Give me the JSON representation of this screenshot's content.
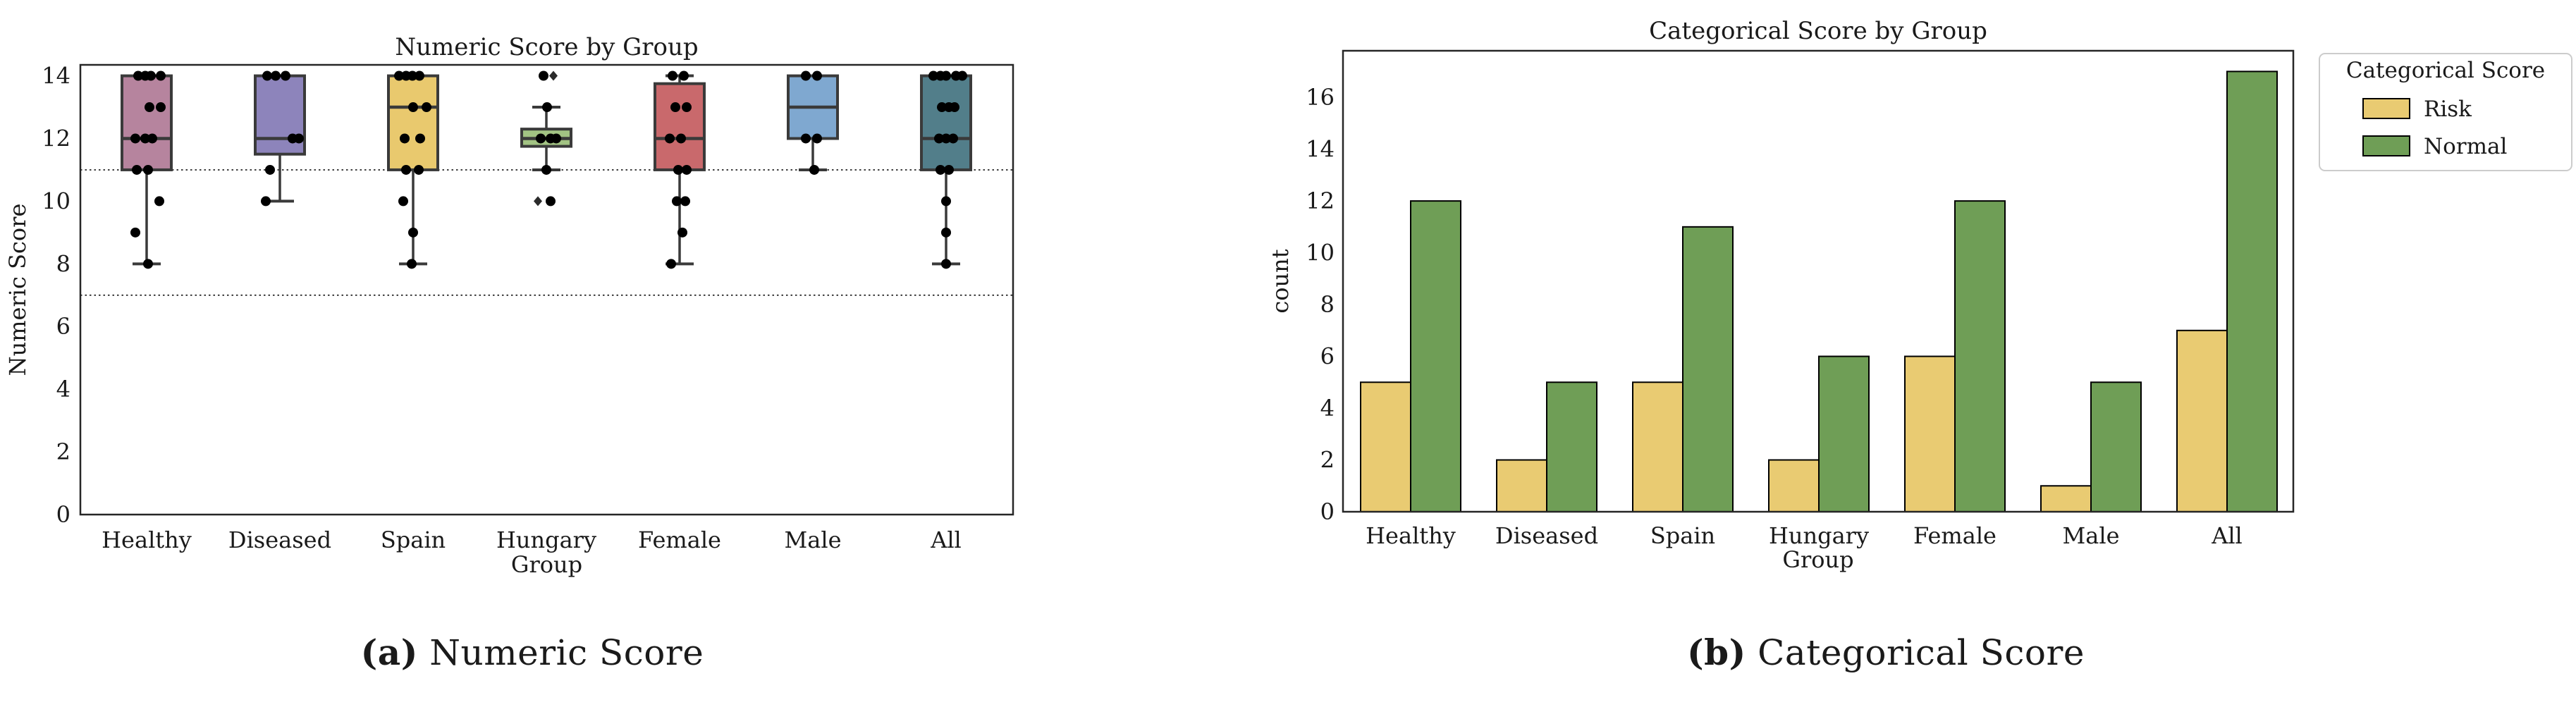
{
  "captions": {
    "a": {
      "label": "(a)",
      "text": " Numeric Score"
    },
    "b": {
      "label": "(b)",
      "text": " Categorical Score"
    }
  },
  "chart_data": [
    {
      "type": "box",
      "title": "Numeric Score by Group",
      "xlabel": "Group",
      "ylabel": "Numeric Score",
      "categories": [
        "Healthy",
        "Diseased",
        "Spain",
        "Hungary",
        "Female",
        "Male",
        "All"
      ],
      "yticks": [
        0,
        2,
        4,
        6,
        8,
        10,
        12,
        14
      ],
      "ylim": [
        0,
        14.35
      ],
      "grid": false,
      "reference_lines": [
        11,
        7
      ],
      "point_color": "#000000",
      "edge_color": "#3a3a3a",
      "boxes": [
        {
          "group": "Healthy",
          "color": "#b6849e",
          "q1": 11,
          "median": 12,
          "q3": 14,
          "whisker_low": 8,
          "whisker_high": 14,
          "fliers": [],
          "points": [
            [
              14,
              -12
            ],
            [
              14,
              -2
            ],
            [
              14,
              6
            ],
            [
              14,
              20
            ],
            [
              13,
              4
            ],
            [
              13,
              20
            ],
            [
              12,
              -16
            ],
            [
              12,
              -2
            ],
            [
              12,
              8
            ],
            [
              11,
              -14
            ],
            [
              11,
              2
            ],
            [
              10,
              18
            ],
            [
              9,
              -16
            ],
            [
              8,
              2
            ]
          ]
        },
        {
          "group": "Diseased",
          "color": "#8d84bb",
          "q1": 11.5,
          "median": 12,
          "q3": 14,
          "whisker_low": 10,
          "whisker_high": 14,
          "fliers": [],
          "points": [
            [
              14,
              -18
            ],
            [
              14,
              -6
            ],
            [
              14,
              8
            ],
            [
              12,
              18
            ],
            [
              12,
              27
            ],
            [
              11,
              -14
            ],
            [
              10,
              -20
            ]
          ]
        },
        {
          "group": "Spain",
          "color": "#e9c96e",
          "q1": 11,
          "median": 13,
          "q3": 14,
          "whisker_low": 8,
          "whisker_high": 14,
          "fliers": [],
          "points": [
            [
              14,
              -20
            ],
            [
              14,
              -10
            ],
            [
              14,
              -1
            ],
            [
              14,
              9
            ],
            [
              13,
              0
            ],
            [
              13,
              19
            ],
            [
              12,
              -12
            ],
            [
              12,
              10
            ],
            [
              11,
              -10
            ],
            [
              11,
              8
            ],
            [
              10,
              -14
            ],
            [
              9,
              0
            ],
            [
              8,
              -2
            ]
          ]
        },
        {
          "group": "Hungary",
          "color": "#a2c383",
          "q1": 11.75,
          "median": 12,
          "q3": 12.3,
          "whisker_low": 11,
          "whisker_high": 13,
          "fliers": [
            [
              14,
              10
            ],
            [
              10,
              -12
            ]
          ],
          "points": [
            [
              14,
              -4
            ],
            [
              13,
              1
            ],
            [
              12,
              -8
            ],
            [
              12,
              6
            ],
            [
              12,
              14
            ],
            [
              11,
              0
            ],
            [
              10,
              6
            ]
          ]
        },
        {
          "group": "Female",
          "color": "#c9696c",
          "q1": 11,
          "median": 12,
          "q3": 13.75,
          "whisker_low": 8,
          "whisker_high": 14,
          "fliers": [],
          "points": [
            [
              14,
              -10
            ],
            [
              14,
              6
            ],
            [
              13,
              -6
            ],
            [
              13,
              10
            ],
            [
              12,
              -14
            ],
            [
              12,
              2
            ],
            [
              11,
              -2
            ],
            [
              11,
              10
            ],
            [
              10,
              -4
            ],
            [
              10,
              8
            ],
            [
              9,
              4
            ],
            [
              8,
              -12
            ]
          ]
        },
        {
          "group": "Male",
          "color": "#7fa8d0",
          "q1": 12,
          "median": 13,
          "q3": 14,
          "whisker_low": 11,
          "whisker_high": 14,
          "fliers": [],
          "points": [
            [
              14,
              -10
            ],
            [
              14,
              6
            ],
            [
              12,
              -10
            ],
            [
              12,
              6
            ],
            [
              11,
              2
            ]
          ]
        },
        {
          "group": "All",
          "color": "#527e8a",
          "q1": 11,
          "median": 12,
          "q3": 14,
          "whisker_low": 8,
          "whisker_high": 14,
          "fliers": [],
          "points": [
            [
              14,
              -18
            ],
            [
              14,
              -8
            ],
            [
              14,
              0
            ],
            [
              14,
              14
            ],
            [
              14,
              23
            ],
            [
              13,
              -6
            ],
            [
              13,
              4
            ],
            [
              13,
              12
            ],
            [
              12,
              -10
            ],
            [
              12,
              0
            ],
            [
              12,
              10
            ],
            [
              11,
              -8
            ],
            [
              11,
              4
            ],
            [
              10,
              0
            ],
            [
              9,
              0
            ],
            [
              8,
              0
            ]
          ]
        }
      ]
    },
    {
      "type": "bar",
      "title": "Categorical Score by Group",
      "xlabel": "Group",
      "ylabel": "count",
      "categories": [
        "Healthy",
        "Diseased",
        "Spain",
        "Hungary",
        "Female",
        "Male",
        "All"
      ],
      "yticks": [
        0,
        2,
        4,
        6,
        8,
        10,
        12,
        14,
        16
      ],
      "ylim": [
        0,
        17.8
      ],
      "grid": false,
      "bar_edge_color": "#000000",
      "legend": {
        "title": "Categorical Score",
        "position": "outside-right",
        "entries": [
          {
            "label": "Risk",
            "color": "#e9cb72"
          },
          {
            "label": "Normal",
            "color": "#6f9e56"
          }
        ]
      },
      "series": [
        {
          "name": "Risk",
          "color": "#e9cb72",
          "values": [
            5,
            2,
            5,
            2,
            6,
            1,
            7
          ]
        },
        {
          "name": "Normal",
          "color": "#6f9e56",
          "values": [
            12,
            5,
            11,
            6,
            12,
            5,
            17
          ]
        }
      ]
    }
  ]
}
